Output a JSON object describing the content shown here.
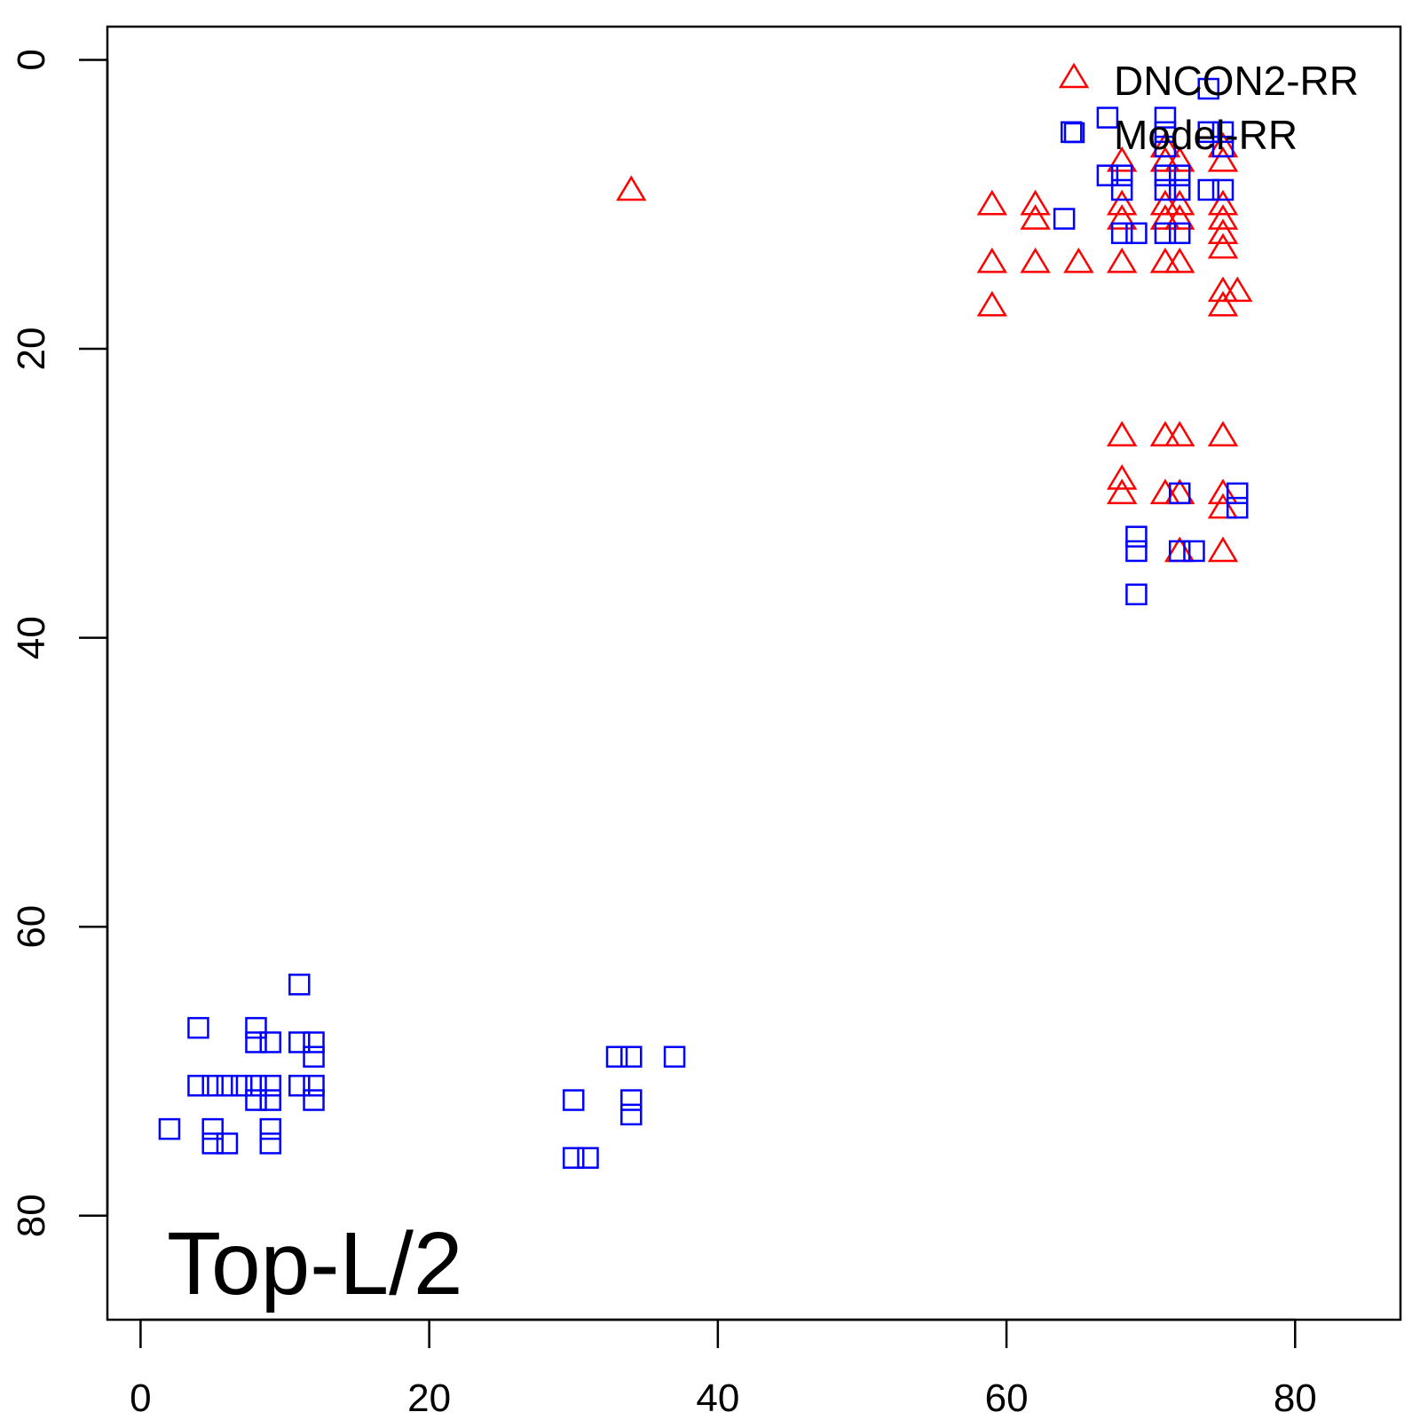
{
  "chart_data": {
    "type": "scatter",
    "title": "",
    "annotation": "Top-L/2",
    "xlabel": "",
    "ylabel": "",
    "xlim": [
      -2.3,
      87.3
    ],
    "ylim": [
      87.2,
      -2.3
    ],
    "y_reversed": true,
    "grid": false,
    "legend_position": "top-right",
    "x_ticks": [
      "0",
      "20",
      "40",
      "60",
      "80"
    ],
    "y_ticks": [
      "0",
      "20",
      "40",
      "60",
      "80"
    ],
    "series": [
      {
        "name": "DNCON2-RR",
        "marker": "triangle",
        "color": "#ff0000",
        "points": [
          [
            34,
            9
          ],
          [
            71,
            6
          ],
          [
            75,
            6
          ],
          [
            68,
            7
          ],
          [
            71,
            7
          ],
          [
            72,
            7
          ],
          [
            75,
            7
          ],
          [
            59,
            10
          ],
          [
            62,
            10
          ],
          [
            68,
            10
          ],
          [
            71,
            10
          ],
          [
            72,
            10
          ],
          [
            75,
            10
          ],
          [
            62,
            11
          ],
          [
            68,
            11
          ],
          [
            71,
            11
          ],
          [
            72,
            11
          ],
          [
            75,
            11
          ],
          [
            75,
            12
          ],
          [
            75,
            13
          ],
          [
            59,
            14
          ],
          [
            62,
            14
          ],
          [
            65,
            14
          ],
          [
            68,
            14
          ],
          [
            71,
            14
          ],
          [
            72,
            14
          ],
          [
            75,
            16
          ],
          [
            76,
            16
          ],
          [
            59,
            17
          ],
          [
            75,
            17
          ],
          [
            68,
            26
          ],
          [
            71,
            26
          ],
          [
            72,
            26
          ],
          [
            75,
            26
          ],
          [
            68,
            29
          ],
          [
            68,
            30
          ],
          [
            71,
            30
          ],
          [
            72,
            30
          ],
          [
            75,
            30
          ],
          [
            75,
            31
          ],
          [
            72,
            34
          ],
          [
            75,
            34
          ]
        ]
      },
      {
        "name": "Model-RR",
        "marker": "square",
        "color": "#0000ff",
        "points": [
          [
            74,
            2
          ],
          [
            67,
            4
          ],
          [
            71,
            4
          ],
          [
            64.5,
            5
          ],
          [
            71,
            5
          ],
          [
            74,
            5
          ],
          [
            75,
            5
          ],
          [
            71,
            6
          ],
          [
            75,
            6
          ],
          [
            67,
            8
          ],
          [
            68,
            8
          ],
          [
            71,
            8
          ],
          [
            72,
            8
          ],
          [
            68,
            9
          ],
          [
            71,
            9
          ],
          [
            72,
            9
          ],
          [
            74,
            9
          ],
          [
            75,
            9
          ],
          [
            64,
            11
          ],
          [
            68,
            12
          ],
          [
            69,
            12
          ],
          [
            71,
            12
          ],
          [
            72,
            12
          ],
          [
            72,
            30
          ],
          [
            76,
            30
          ],
          [
            76,
            31
          ],
          [
            69,
            33
          ],
          [
            69,
            34
          ],
          [
            72,
            34
          ],
          [
            73,
            34
          ],
          [
            69,
            37
          ],
          [
            11,
            64
          ],
          [
            4,
            67
          ],
          [
            8,
            67
          ],
          [
            8,
            68
          ],
          [
            9,
            68
          ],
          [
            11,
            68
          ],
          [
            12,
            68
          ],
          [
            12,
            69
          ],
          [
            33,
            69
          ],
          [
            34,
            69
          ],
          [
            37,
            69
          ],
          [
            4,
            71
          ],
          [
            5,
            71
          ],
          [
            6,
            71
          ],
          [
            7,
            71
          ],
          [
            8,
            71
          ],
          [
            9,
            71
          ],
          [
            11,
            71
          ],
          [
            12,
            71
          ],
          [
            8,
            72
          ],
          [
            9,
            72
          ],
          [
            12,
            72
          ],
          [
            30,
            72
          ],
          [
            34,
            72
          ],
          [
            34,
            73
          ],
          [
            2,
            74
          ],
          [
            5,
            74
          ],
          [
            9,
            74
          ],
          [
            5,
            75
          ],
          [
            6,
            75
          ],
          [
            9,
            75
          ],
          [
            30,
            76
          ],
          [
            31,
            76
          ]
        ]
      }
    ]
  }
}
